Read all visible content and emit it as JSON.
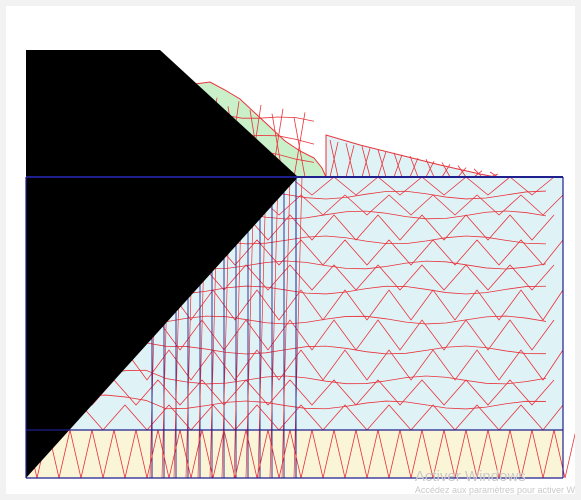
{
  "colors": {
    "background": "#f2f2f2",
    "canvas": "#ffffff",
    "soil_upper": "#c9f0c9",
    "soil_middle": "#dff3f7",
    "soil_bottom": "#fbf5d8",
    "mesh_line": "#e8323a",
    "boundary_line": "#1f1f8f",
    "watermark": "#c9c9c9"
  },
  "watermark": {
    "title": "Activer Windows",
    "subtitle": "Accédez aux paramètres pour activer W"
  }
}
